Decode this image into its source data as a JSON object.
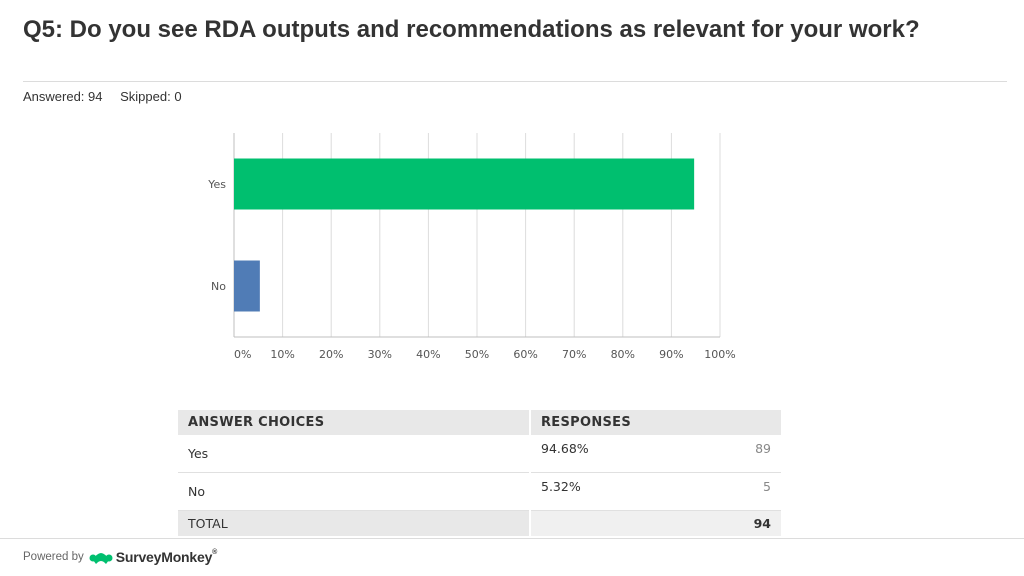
{
  "question": {
    "title": "Q5: Do you see RDA outputs and recommendations as relevant for your work?",
    "answered": "Answered: 94",
    "skipped": "Skipped: 0"
  },
  "colors": {
    "yes": "#00bf6f",
    "no": "#507cb6",
    "grid": "#dcdcdc",
    "brand": "#00bf6f"
  },
  "chart_data": {
    "type": "bar",
    "orientation": "horizontal",
    "categories": [
      "Yes",
      "No"
    ],
    "values": [
      94.68,
      5.32
    ],
    "xlim": [
      0,
      100
    ],
    "xticks": [
      "0%",
      "10%",
      "20%",
      "30%",
      "40%",
      "50%",
      "60%",
      "70%",
      "80%",
      "90%",
      "100%"
    ],
    "grid": true,
    "title": "",
    "xlabel": "",
    "ylabel": ""
  },
  "table": {
    "headers": [
      "ANSWER CHOICES",
      "RESPONSES"
    ],
    "rows": [
      {
        "choice": "Yes",
        "percent": "94.68%",
        "count": "89"
      },
      {
        "choice": "No",
        "percent": "5.32%",
        "count": "5"
      }
    ],
    "total_label": "TOTAL",
    "total_value": "94"
  },
  "footer": {
    "powered_by": "Powered by",
    "brand": "SurveyMonkey",
    "brand_mark": "®",
    "logo_icon": "surveymonkey-logo-icon"
  }
}
